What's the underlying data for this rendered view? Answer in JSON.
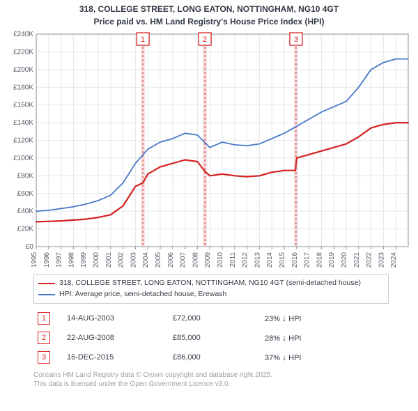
{
  "title_line1": "318, COLLEGE STREET, LONG EATON, NOTTINGHAM, NG10 4GT",
  "title_line2": "Price paid vs. HM Land Registry's House Price Index (HPI)",
  "chart": {
    "type": "line",
    "x_years": [
      1995,
      1996,
      1997,
      1998,
      1999,
      2000,
      2001,
      2002,
      2003,
      2004,
      2005,
      2006,
      2007,
      2008,
      2009,
      2010,
      2011,
      2012,
      2013,
      2014,
      2015,
      2016,
      2017,
      2018,
      2019,
      2020,
      2021,
      2022,
      2023,
      2024
    ],
    "xlim": [
      1995,
      2025
    ],
    "ylim": [
      0,
      240000
    ],
    "ytick_step": 20000,
    "ytick_labels": [
      "£0",
      "£20K",
      "£40K",
      "£60K",
      "£80K",
      "£100K",
      "£120K",
      "£140K",
      "£160K",
      "£180K",
      "£200K",
      "£220K",
      "£240K"
    ],
    "grid_color": "#e4e7ec",
    "axis_color": "#8a909b",
    "background_color": "#ffffff",
    "series_property": {
      "label": "318, COLLEGE STREET, LONG EATON, NOTTINGHAM, NG10 4GT (semi-detached house)",
      "color": "#d42020",
      "width": 2.2,
      "points": [
        [
          1995,
          28000
        ],
        [
          1996,
          28500
        ],
        [
          1997,
          29000
        ],
        [
          1998,
          30000
        ],
        [
          1999,
          31000
        ],
        [
          2000,
          33000
        ],
        [
          2001,
          36000
        ],
        [
          2002,
          46000
        ],
        [
          2003,
          68000
        ],
        [
          2003.6,
          72000
        ],
        [
          2004,
          82000
        ],
        [
          2005,
          90000
        ],
        [
          2006,
          94000
        ],
        [
          2007,
          98000
        ],
        [
          2008,
          96000
        ],
        [
          2008.6,
          85000
        ],
        [
          2009,
          80000
        ],
        [
          2010,
          82000
        ],
        [
          2011,
          80000
        ],
        [
          2012,
          79000
        ],
        [
          2013,
          80000
        ],
        [
          2014,
          84000
        ],
        [
          2015,
          86000
        ],
        [
          2015.9,
          86000
        ],
        [
          2016,
          100000
        ],
        [
          2017,
          104000
        ],
        [
          2018,
          108000
        ],
        [
          2019,
          112000
        ],
        [
          2020,
          116000
        ],
        [
          2021,
          124000
        ],
        [
          2022,
          134000
        ],
        [
          2023,
          138000
        ],
        [
          2024,
          140000
        ],
        [
          2025,
          140000
        ]
      ]
    },
    "series_hpi": {
      "label": "HPI: Average price, semi-detached house, Erewash",
      "color": "#4a78c8",
      "width": 1.8,
      "points": [
        [
          1995,
          40000
        ],
        [
          1996,
          41000
        ],
        [
          1997,
          43000
        ],
        [
          1998,
          45000
        ],
        [
          1999,
          48000
        ],
        [
          2000,
          52000
        ],
        [
          2001,
          58000
        ],
        [
          2002,
          72000
        ],
        [
          2003,
          94000
        ],
        [
          2004,
          110000
        ],
        [
          2005,
          118000
        ],
        [
          2006,
          122000
        ],
        [
          2007,
          128000
        ],
        [
          2008,
          126000
        ],
        [
          2009,
          112000
        ],
        [
          2010,
          118000
        ],
        [
          2011,
          115000
        ],
        [
          2012,
          114000
        ],
        [
          2013,
          116000
        ],
        [
          2014,
          122000
        ],
        [
          2015,
          128000
        ],
        [
          2016,
          136000
        ],
        [
          2017,
          144000
        ],
        [
          2018,
          152000
        ],
        [
          2019,
          158000
        ],
        [
          2020,
          164000
        ],
        [
          2021,
          180000
        ],
        [
          2022,
          200000
        ],
        [
          2023,
          208000
        ],
        [
          2024,
          212000
        ],
        [
          2025,
          212000
        ]
      ]
    },
    "markers": [
      {
        "n": "1",
        "x": 2003.6,
        "date": "14-AUG-2003",
        "price": "£72,000",
        "delta": "23% ↓ HPI",
        "band_color": "#f6d9d9",
        "border_color": "#d42020"
      },
      {
        "n": "2",
        "x": 2008.6,
        "date": "22-AUG-2008",
        "price": "£85,000",
        "delta": "28% ↓ HPI",
        "band_color": "#f6d9d9",
        "border_color": "#d42020"
      },
      {
        "n": "3",
        "x": 2015.95,
        "date": "16-DEC-2015",
        "price": "£86,000",
        "delta": "37% ↓ HPI",
        "band_color": "#f6d9d9",
        "border_color": "#d42020"
      }
    ]
  },
  "footnote_line1": "Contains HM Land Registry data © Crown copyright and database right 2025.",
  "footnote_line2": "This data is licensed under the Open Government Licence v3.0."
}
